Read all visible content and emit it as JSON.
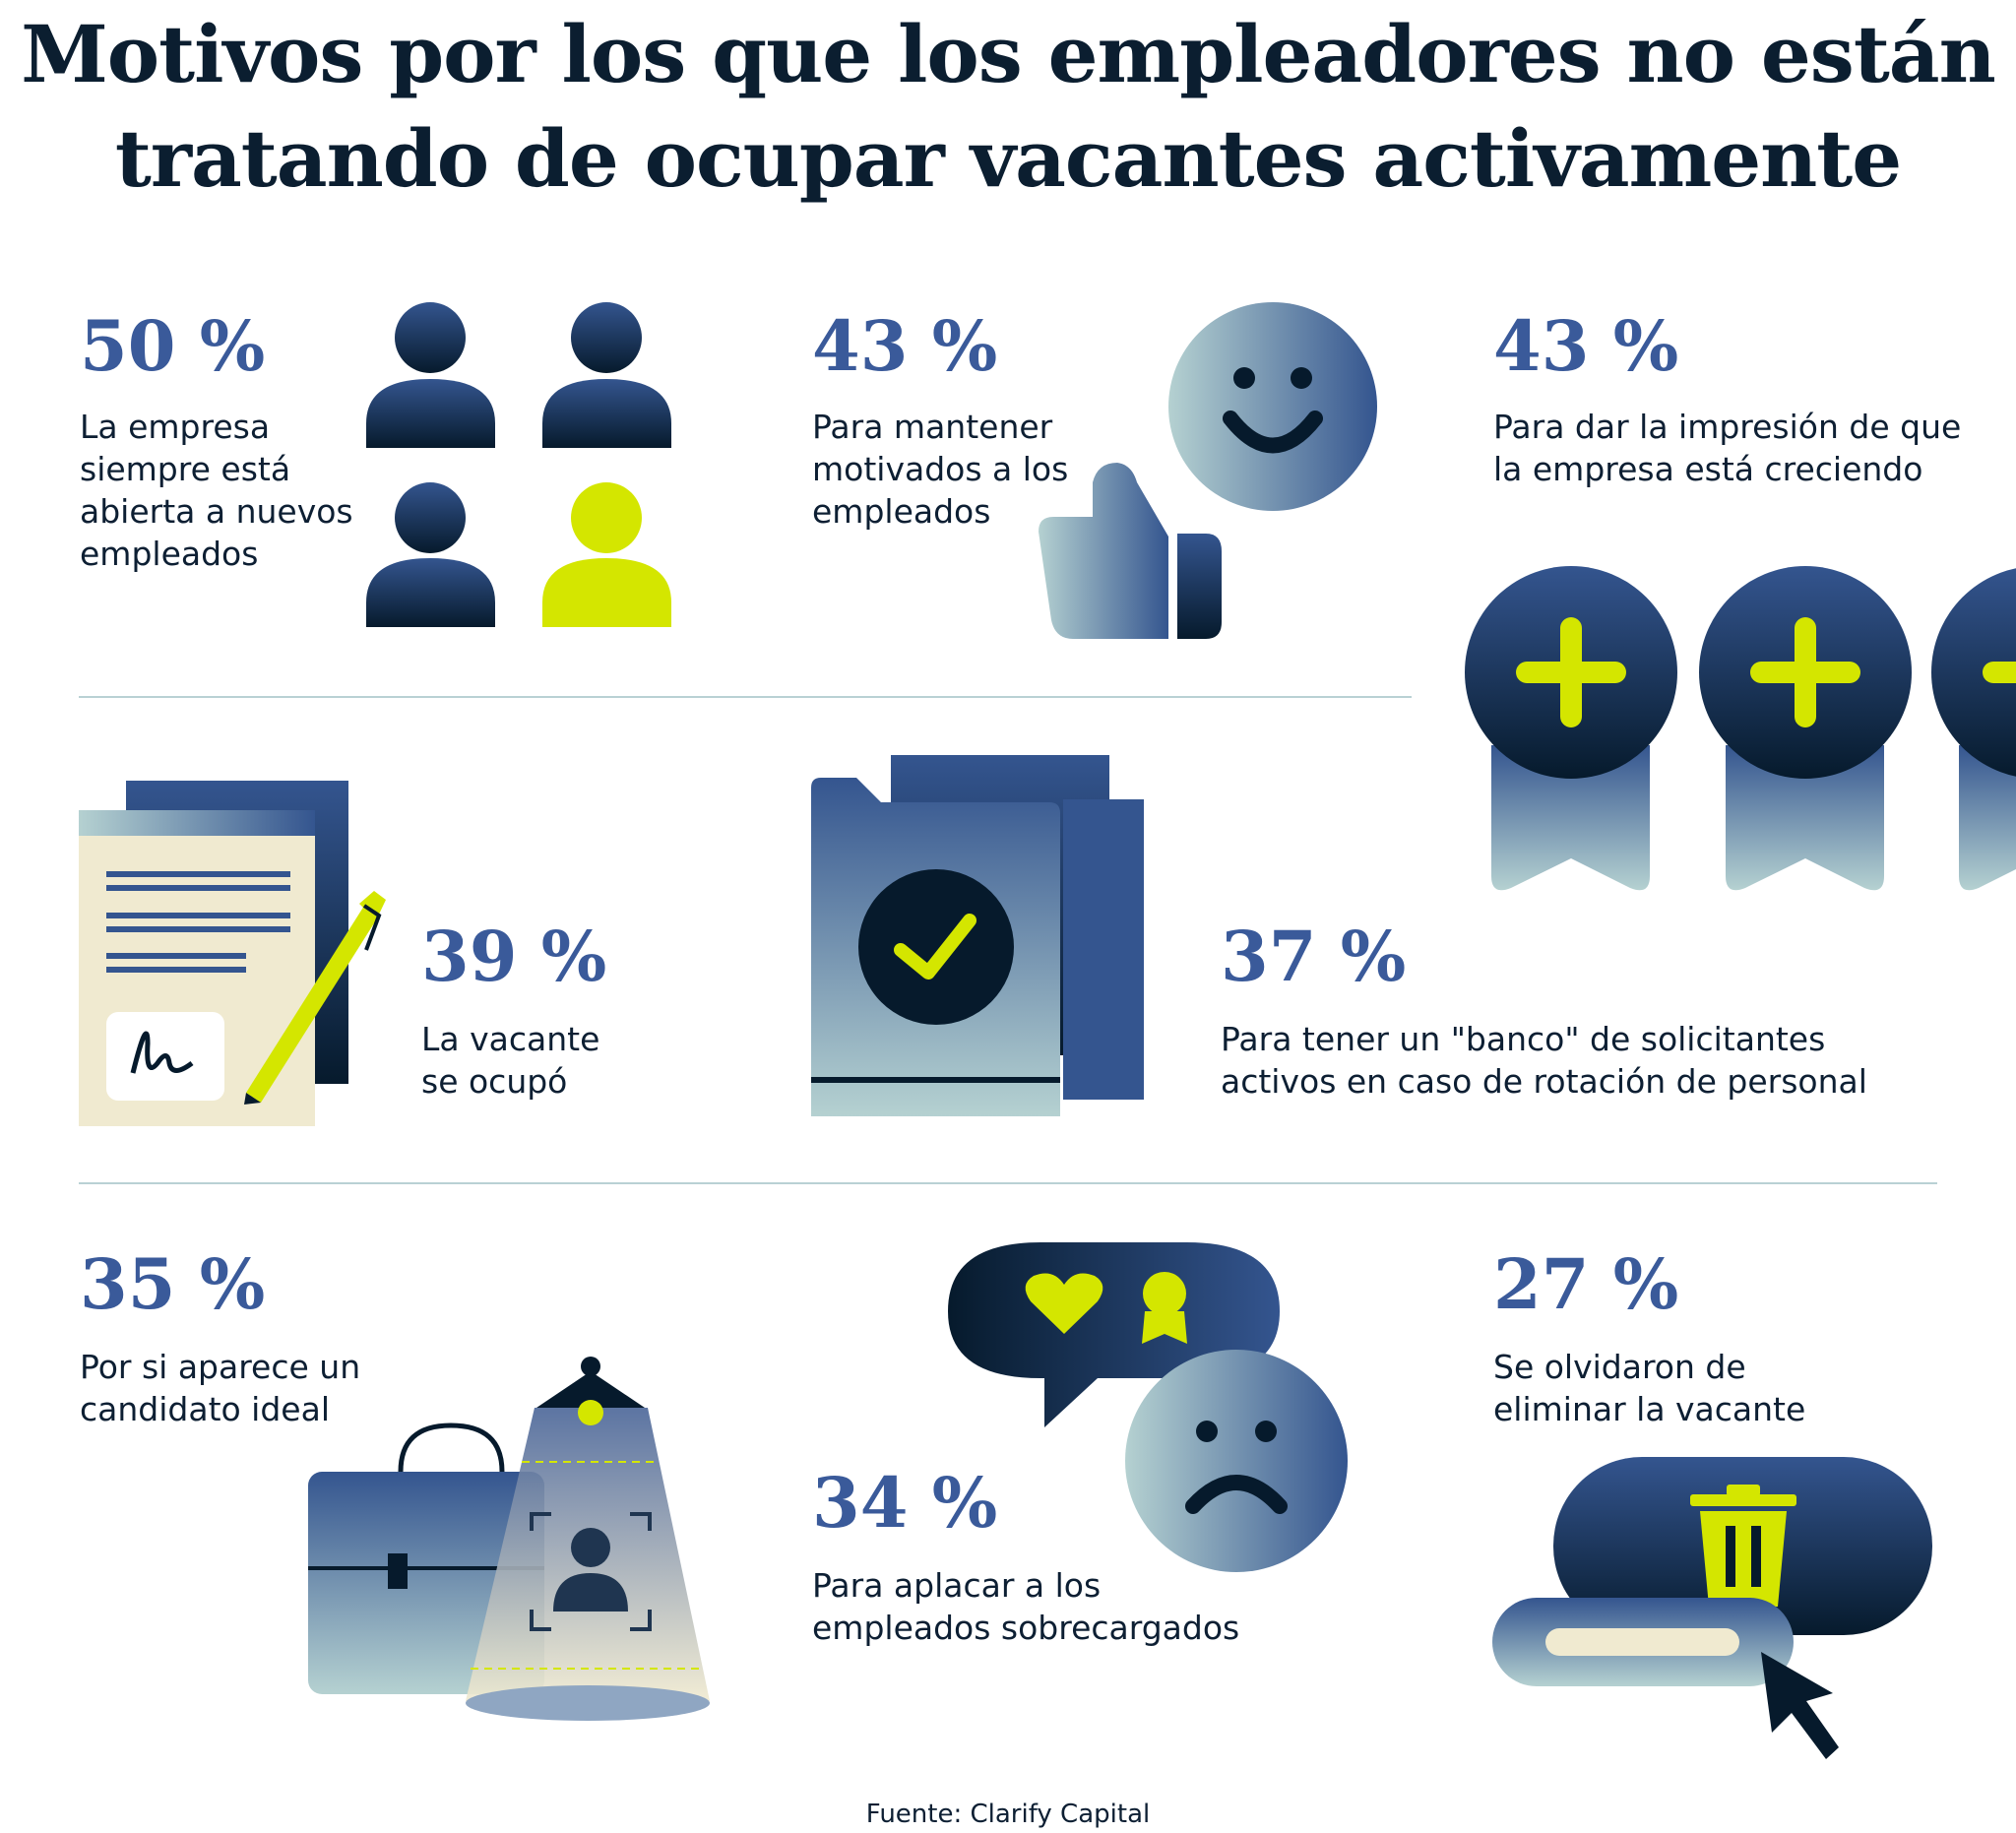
{
  "title": {
    "line1": "Motivos por los que los empleadores no están",
    "line2": "tratando de ocupar vacantes activamente"
  },
  "stats": [
    {
      "value": "50 %",
      "lines": [
        "La empresa",
        "siempre está",
        "abierta a nuevos",
        "empleados"
      ],
      "icon": "people-icon"
    },
    {
      "value": "43 %",
      "lines": [
        "Para mantener",
        "motivados a los",
        "empleados"
      ],
      "icon": "smiley-thumbs-up-icon"
    },
    {
      "value": "43 %",
      "lines": [
        "Para dar la impresión de que",
        "la empresa está creciendo"
      ],
      "icon": "plus-badge-icon"
    },
    {
      "value": "39 %",
      "lines": [
        "La vacante",
        "se ocupó"
      ],
      "icon": "signed-document-icon"
    },
    {
      "value": "37 %",
      "lines": [
        "Para tener un \"banco\" de solicitantes",
        "activos en caso de rotación de personal"
      ],
      "icon": "approved-folder-icon"
    },
    {
      "value": "35 %",
      "lines": [
        "Por si aparece un",
        "candidato ideal"
      ],
      "icon": "briefcase-spotlight-icon"
    },
    {
      "value": "34 %",
      "lines": [
        "Para aplacar a los",
        "empleados sobrecargados"
      ],
      "icon": "sad-face-speech-bubble-icon"
    },
    {
      "value": "27 %",
      "lines": [
        "Se olvidaron de",
        "eliminar la vacante"
      ],
      "icon": "delete-trash-icon"
    }
  ],
  "source": "Fuente: Clarify Capital",
  "colors": {
    "navy": "#0b1e30",
    "blue": "#3a5a9a",
    "lime": "#d4e600",
    "pale": "#b3cfd0",
    "cream": "#f0ead0"
  }
}
